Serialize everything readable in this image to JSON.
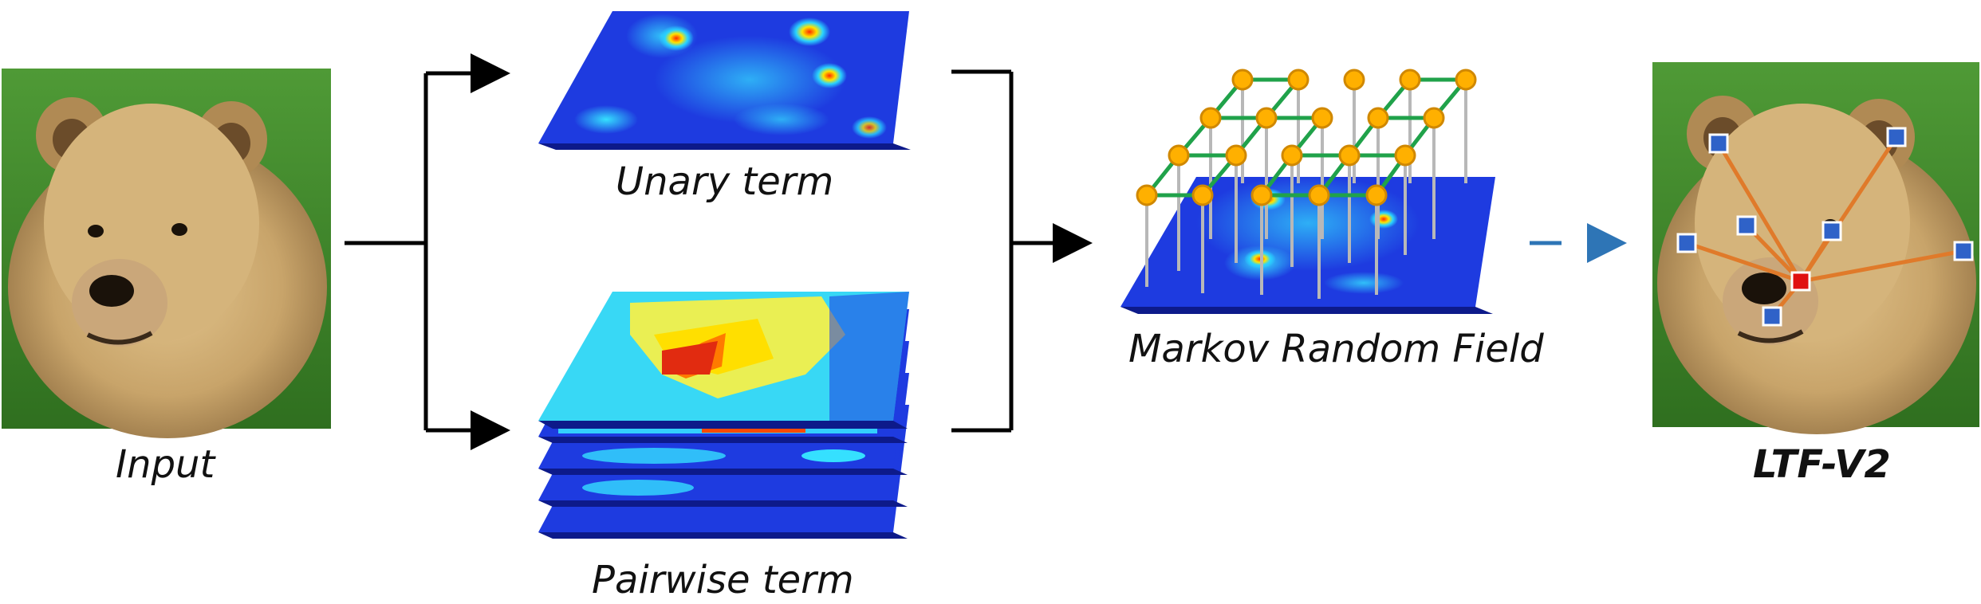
{
  "labels": {
    "input": "Input",
    "unary": "Unary term",
    "pairwise": "Pairwise term",
    "mrf": "Markov Random Field",
    "output": "LTF-V2"
  },
  "colors": {
    "arrow": "#000000",
    "dashed_arrow": "#2e75b6",
    "edge_green": "#20a24a",
    "node_orange": "#ffb000",
    "node_stroke": "#d08800",
    "landmark_blue": "#2f62c8",
    "landmark_red": "#e01010",
    "spoke_orange": "#e07a2a",
    "field_blue": "#1a2fd0",
    "grass": "#3f8a2a",
    "fur": "#c8a46a"
  }
}
